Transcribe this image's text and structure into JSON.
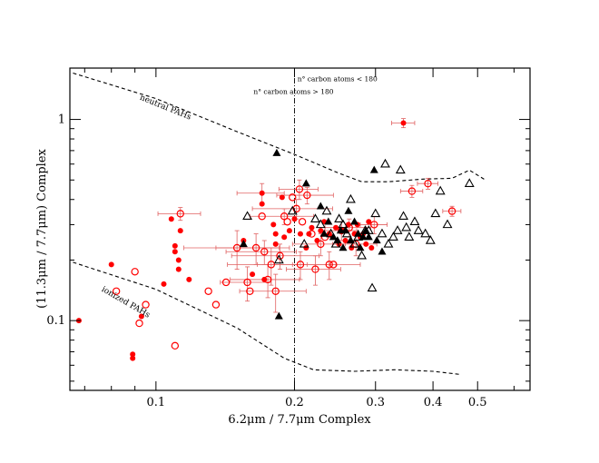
{
  "chart_data": {
    "type": "scatter",
    "xlabel": "6.2μm / 7.7μm Complex",
    "ylabel": "(11.3μm / 7.7μm) Complex",
    "xscale": "log",
    "yscale": "log",
    "xlim": [
      0.065,
      0.65
    ],
    "ylim": [
      0.045,
      1.8
    ],
    "xticks": [
      {
        "value": 0.1,
        "label": "0.1"
      },
      {
        "value": 0.2,
        "label": "0.2"
      },
      {
        "value": 0.3,
        "label": "0.3"
      },
      {
        "value": 0.4,
        "label": "0.4"
      },
      {
        "value": 0.5,
        "label": "0.5"
      }
    ],
    "yticks": [
      {
        "value": 0.1,
        "label": "0.1"
      },
      {
        "value": 1,
        "label": "1"
      }
    ],
    "legend": "none",
    "grid": false,
    "divider_x": 0.2,
    "annotations": [
      {
        "text": "n° carbon atoms > 180",
        "x": 0.163,
        "y": 1.34
      },
      {
        "text": "n° carbon atoms < 180",
        "x": 0.203,
        "y": 1.55
      },
      {
        "text": "neutral PAHs",
        "x": 0.092,
        "y": 1.26,
        "angle": 22
      },
      {
        "text": "ionized PAHs",
        "x": 0.076,
        "y": 0.141,
        "angle": 30
      }
    ],
    "curves": [
      {
        "label": "neutral PAHs",
        "points": [
          [
            0.066,
            1.7
          ],
          [
            0.1,
            1.27
          ],
          [
            0.15,
            0.87
          ],
          [
            0.2,
            0.67
          ],
          [
            0.25,
            0.54
          ],
          [
            0.28,
            0.49
          ],
          [
            0.32,
            0.49
          ],
          [
            0.38,
            0.505
          ],
          [
            0.44,
            0.51
          ],
          [
            0.48,
            0.56
          ],
          [
            0.52,
            0.5
          ]
        ]
      },
      {
        "label": "ionized PAHs",
        "points": [
          [
            0.066,
            0.195
          ],
          [
            0.1,
            0.143
          ],
          [
            0.15,
            0.092
          ],
          [
            0.19,
            0.065
          ],
          [
            0.22,
            0.057
          ],
          [
            0.27,
            0.056
          ],
          [
            0.33,
            0.057
          ],
          [
            0.4,
            0.056
          ],
          [
            0.46,
            0.054
          ]
        ]
      }
    ],
    "series": [
      {
        "marker": "filled-circle",
        "color": "#ff0000",
        "points": [
          [
            0.068,
            0.1
          ],
          [
            0.08,
            0.19
          ],
          [
            0.089,
            0.068
          ],
          [
            0.089,
            0.065
          ],
          [
            0.093,
            0.105
          ],
          [
            0.104,
            0.152
          ],
          [
            0.108,
            0.32
          ],
          [
            0.11,
            0.22
          ],
          [
            0.11,
            0.235
          ],
          [
            0.112,
            0.2
          ],
          [
            0.112,
            0.18
          ],
          [
            0.113,
            0.28
          ],
          [
            0.118,
            0.16
          ],
          [
            0.155,
            0.25
          ],
          [
            0.162,
            0.17
          ],
          [
            0.17,
            0.43
          ],
          [
            0.17,
            0.38
          ],
          [
            0.172,
            0.16
          ],
          [
            0.18,
            0.3
          ],
          [
            0.182,
            0.27
          ],
          [
            0.182,
            0.24
          ],
          [
            0.188,
            0.41
          ],
          [
            0.19,
            0.26
          ],
          [
            0.195,
            0.28
          ],
          [
            0.2,
            0.32
          ],
          [
            0.206,
            0.27
          ],
          [
            0.212,
            0.23
          ],
          [
            0.215,
            0.27
          ],
          [
            0.218,
            0.29
          ],
          [
            0.224,
            0.25
          ],
          [
            0.228,
            0.28
          ],
          [
            0.232,
            0.31
          ],
          [
            0.238,
            0.27
          ],
          [
            0.242,
            0.26
          ],
          [
            0.246,
            0.29
          ],
          [
            0.25,
            0.24
          ],
          [
            0.254,
            0.28
          ],
          [
            0.258,
            0.25
          ],
          [
            0.262,
            0.3
          ],
          [
            0.266,
            0.23
          ],
          [
            0.27,
            0.27
          ],
          [
            0.274,
            0.3
          ],
          [
            0.278,
            0.26
          ],
          [
            0.282,
            0.27
          ],
          [
            0.286,
            0.24
          ],
          [
            0.29,
            0.31
          ],
          [
            0.294,
            0.23
          ],
          [
            0.345,
            0.96
          ]
        ]
      },
      {
        "marker": "open-circle",
        "color": "#ff0000",
        "points": [
          [
            0.082,
            0.14
          ],
          [
            0.09,
            0.175
          ],
          [
            0.092,
            0.097
          ],
          [
            0.095,
            0.12
          ],
          [
            0.11,
            0.075
          ],
          [
            0.113,
            0.34
          ],
          [
            0.13,
            0.14
          ],
          [
            0.135,
            0.12
          ],
          [
            0.142,
            0.155
          ],
          [
            0.15,
            0.23
          ],
          [
            0.158,
            0.155
          ],
          [
            0.16,
            0.14
          ],
          [
            0.165,
            0.23
          ],
          [
            0.17,
            0.33
          ],
          [
            0.172,
            0.22
          ],
          [
            0.175,
            0.16
          ],
          [
            0.178,
            0.19
          ],
          [
            0.182,
            0.14
          ],
          [
            0.186,
            0.21
          ],
          [
            0.19,
            0.33
          ],
          [
            0.193,
            0.31
          ],
          [
            0.198,
            0.41
          ],
          [
            0.202,
            0.36
          ],
          [
            0.205,
            0.45
          ],
          [
            0.206,
            0.19
          ],
          [
            0.208,
            0.31
          ],
          [
            0.213,
            0.42
          ],
          [
            0.218,
            0.27
          ],
          [
            0.222,
            0.18
          ],
          [
            0.228,
            0.24
          ],
          [
            0.233,
            0.26
          ],
          [
            0.238,
            0.19
          ],
          [
            0.243,
            0.19
          ],
          [
            0.253,
            0.28
          ],
          [
            0.263,
            0.29
          ],
          [
            0.272,
            0.24
          ],
          [
            0.298,
            0.3
          ],
          [
            0.36,
            0.44
          ],
          [
            0.39,
            0.48
          ],
          [
            0.44,
            0.35
          ]
        ]
      },
      {
        "marker": "filled-triangle",
        "color": "#000000",
        "points": [
          [
            0.155,
            0.24
          ],
          [
            0.183,
            0.68
          ],
          [
            0.185,
            0.105
          ],
          [
            0.212,
            0.48
          ],
          [
            0.228,
            0.37
          ],
          [
            0.232,
            0.27
          ],
          [
            0.237,
            0.31
          ],
          [
            0.243,
            0.26
          ],
          [
            0.248,
            0.25
          ],
          [
            0.252,
            0.28
          ],
          [
            0.255,
            0.23
          ],
          [
            0.258,
            0.28
          ],
          [
            0.262,
            0.35
          ],
          [
            0.265,
            0.25
          ],
          [
            0.27,
            0.31
          ],
          [
            0.275,
            0.27
          ],
          [
            0.278,
            0.23
          ],
          [
            0.282,
            0.26
          ],
          [
            0.286,
            0.28
          ],
          [
            0.29,
            0.26
          ],
          [
            0.298,
            0.56
          ],
          [
            0.302,
            0.25
          ],
          [
            0.31,
            0.22
          ]
        ]
      },
      {
        "marker": "open-triangle",
        "color": "#000000",
        "points": [
          [
            0.158,
            0.33
          ],
          [
            0.185,
            0.2
          ],
          [
            0.198,
            0.35
          ],
          [
            0.21,
            0.24
          ],
          [
            0.222,
            0.32
          ],
          [
            0.228,
            0.3
          ],
          [
            0.235,
            0.35
          ],
          [
            0.24,
            0.27
          ],
          [
            0.246,
            0.24
          ],
          [
            0.25,
            0.32
          ],
          [
            0.255,
            0.3
          ],
          [
            0.26,
            0.27
          ],
          [
            0.265,
            0.4
          ],
          [
            0.27,
            0.24
          ],
          [
            0.275,
            0.26
          ],
          [
            0.28,
            0.21
          ],
          [
            0.285,
            0.28
          ],
          [
            0.29,
            0.28
          ],
          [
            0.295,
            0.145
          ],
          [
            0.3,
            0.34
          ],
          [
            0.31,
            0.27
          ],
          [
            0.315,
            0.6
          ],
          [
            0.32,
            0.24
          ],
          [
            0.328,
            0.26
          ],
          [
            0.335,
            0.28
          ],
          [
            0.34,
            0.56
          ],
          [
            0.345,
            0.33
          ],
          [
            0.35,
            0.29
          ],
          [
            0.355,
            0.26
          ],
          [
            0.365,
            0.31
          ],
          [
            0.372,
            0.28
          ],
          [
            0.385,
            0.27
          ],
          [
            0.395,
            0.25
          ],
          [
            0.405,
            0.34
          ],
          [
            0.415,
            0.44
          ],
          [
            0.43,
            0.3
          ],
          [
            0.48,
            0.48
          ]
        ]
      }
    ],
    "error_bars": [
      [
        0.113,
        0.34,
        0.012,
        0.025
      ],
      [
        0.15,
        0.23,
        0.035,
        0.05
      ],
      [
        0.158,
        0.155,
        0.02,
        0.03
      ],
      [
        0.165,
        0.23,
        0.03,
        0.04
      ],
      [
        0.17,
        0.43,
        0.02,
        0.05
      ],
      [
        0.172,
        0.22,
        0.03,
        0.03
      ],
      [
        0.175,
        0.16,
        0.03,
        0.03
      ],
      [
        0.178,
        0.19,
        0.035,
        0.04
      ],
      [
        0.182,
        0.14,
        0.03,
        0.03
      ],
      [
        0.186,
        0.21,
        0.04,
        0.03
      ],
      [
        0.19,
        0.33,
        0.03,
        0.03
      ],
      [
        0.202,
        0.36,
        0.04,
        0.04
      ],
      [
        0.205,
        0.45,
        0.02,
        0.05
      ],
      [
        0.206,
        0.19,
        0.04,
        0.03
      ],
      [
        0.213,
        0.42,
        0.03,
        0.04
      ],
      [
        0.222,
        0.18,
        0.03,
        0.03
      ],
      [
        0.228,
        0.24,
        0.03,
        0.03
      ],
      [
        0.238,
        0.19,
        0.04,
        0.03
      ],
      [
        0.253,
        0.28,
        0.02,
        0.03
      ],
      [
        0.263,
        0.29,
        0.03,
        0.03
      ],
      [
        0.272,
        0.24,
        0.03,
        0.03
      ],
      [
        0.298,
        0.3,
        0.02,
        0.03
      ],
      [
        0.345,
        0.96,
        0.02,
        0.05
      ],
      [
        0.36,
        0.44,
        0.02,
        0.03
      ],
      [
        0.39,
        0.48,
        0.02,
        0.03
      ],
      [
        0.44,
        0.35,
        0.02,
        0.02
      ]
    ]
  }
}
